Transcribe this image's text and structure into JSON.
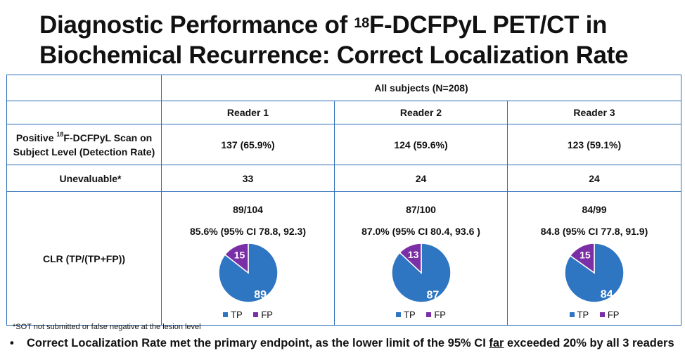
{
  "title": {
    "line1_pre": "Diagnostic Performance of ",
    "line1_sup": "18",
    "line1_post": "F-DCFPyL PET/CT in",
    "line2": "Biochemical Recurrence:  Correct Localization Rate"
  },
  "table": {
    "group_header": "All subjects (N=208)",
    "readers": [
      "Reader 1",
      "Reader 2",
      "Reader 3"
    ],
    "rows": {
      "positive": {
        "label_pre": "Positive ",
        "label_sup": "18",
        "label_post": "F-DCFPyL Scan on",
        "label_line2": "Subject Level (Detection Rate)",
        "values": [
          "137 (65.9%)",
          "124 (59.6%)",
          "123 (59.1%)"
        ]
      },
      "unevaluable": {
        "label": "Unevaluable*",
        "values": [
          "33",
          "24",
          "24"
        ]
      },
      "clr": {
        "label": "CLR (TP/(TP+FP))",
        "fractions": [
          "89/104",
          "87/100",
          "84/99"
        ],
        "ci": [
          "85.6% (95% CI 78.8, 92.3)",
          "87.0% (95% CI 80.4, 93.6 )",
          "84.8 (95% CI 77.8, 91.9)"
        ]
      }
    }
  },
  "chart_data": [
    {
      "type": "pie",
      "categories": [
        "TP",
        "FP"
      ],
      "values": [
        89,
        15
      ],
      "colors": [
        "#2e75c2",
        "#7b2fa6"
      ],
      "legend": "bottom"
    },
    {
      "type": "pie",
      "categories": [
        "TP",
        "FP"
      ],
      "values": [
        87,
        13
      ],
      "colors": [
        "#2e75c2",
        "#7b2fa6"
      ],
      "legend": "bottom"
    },
    {
      "type": "pie",
      "categories": [
        "TP",
        "FP"
      ],
      "values": [
        84,
        15
      ],
      "colors": [
        "#2e75c2",
        "#7b2fa6"
      ],
      "legend": "bottom"
    }
  ],
  "footnote": "*SOT not submitted or false negative at the lesion level",
  "bullet": {
    "marker": "•",
    "pre": "Correct Localization Rate met the primary endpoint, as the lower limit of the 95% CI ",
    "underlined": "far",
    "post": " exceeded 20% by all 3 readers"
  }
}
